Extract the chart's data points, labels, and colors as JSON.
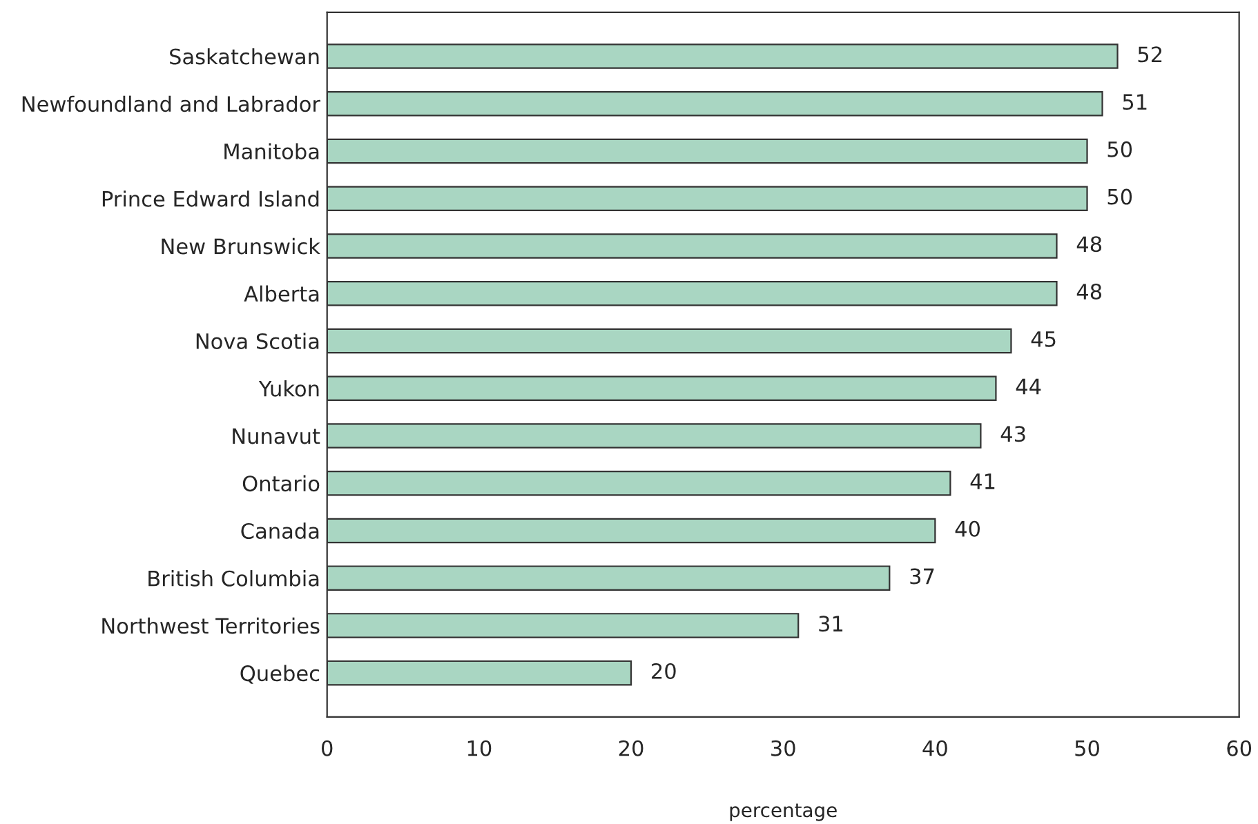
{
  "chart_data": {
    "type": "bar",
    "orientation": "horizontal",
    "xlabel": "percentage",
    "categories": [
      "Saskatchewan",
      "Newfoundland and Labrador",
      "Manitoba",
      "Prince Edward Island",
      "New Brunswick",
      "Alberta",
      "Nova Scotia",
      "Yukon",
      "Nunavut",
      "Ontario",
      "Canada",
      "British Columbia",
      "Northwest Territories",
      "Quebec"
    ],
    "values": [
      52,
      51,
      50,
      50,
      48,
      48,
      45,
      44,
      43,
      41,
      40,
      37,
      31,
      20
    ],
    "color": "#a9d6c2",
    "xlim": [
      0,
      60
    ],
    "xticks": [
      0,
      10,
      20,
      30,
      40,
      50,
      60
    ],
    "data_labels": true,
    "grid": false,
    "legend": false
  }
}
